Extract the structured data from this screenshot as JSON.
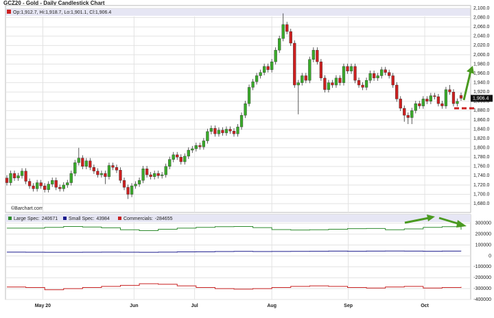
{
  "chart_data": {
    "type": "candlestick",
    "title": "GCZ20 - Gold - Daily Candlestick Chart",
    "ohlc_label": "Op:1,912.7, Hi:1,918.7, Lo:1,901.1, Cl:1,906.4",
    "source": "©Barchart.com",
    "last_price_label": "1,906.4",
    "up_color": "#3aaa2a",
    "down_color": "#cc2020",
    "months": [
      "May 20",
      "Jun",
      "Jul",
      "Aug",
      "Sep",
      "Oct"
    ],
    "open": [
      1735,
      1725,
      1745,
      1735,
      1740,
      1750,
      1728,
      1718,
      1712,
      1725,
      1718,
      1710,
      1722,
      1730,
      1715,
      1712,
      1720,
      1725,
      1745,
      1768,
      1778,
      1760,
      1772,
      1758,
      1750,
      1742,
      1745,
      1738,
      1762,
      1758,
      1752,
      1730,
      1715,
      1700,
      1718,
      1722,
      1730,
      1755,
      1742,
      1738,
      1745,
      1740,
      1742,
      1760,
      1775,
      1785,
      1780,
      1770,
      1782,
      1795,
      1798,
      1805,
      1802,
      1815,
      1835,
      1842,
      1830,
      1838,
      1832,
      1840,
      1836,
      1830,
      1845,
      1870,
      1895,
      1930,
      1942,
      1955,
      1962,
      1975,
      1968,
      1985,
      2010,
      2035,
      2065,
      2050,
      2025,
      1935,
      1940,
      1955,
      1945,
      1990,
      2010,
      1985,
      1950,
      1925,
      1940,
      1935,
      1950,
      1940,
      1975,
      1965,
      1975,
      1945,
      1935,
      1930,
      1945,
      1960,
      1950,
      1955,
      1968,
      1962,
      1955,
      1935,
      1905,
      1885,
      1870,
      1865,
      1880,
      1895,
      1890,
      1905,
      1900,
      1912,
      1910,
      1895,
      1890,
      1925,
      1920,
      1895,
      1912.7
    ],
    "high": [
      1741,
      1751,
      1751,
      1746,
      1756,
      1756,
      1734,
      1724,
      1731,
      1731,
      1724,
      1728,
      1736,
      1736,
      1721,
      1726,
      1731,
      1751,
      1774,
      1800,
      1784,
      1778,
      1778,
      1764,
      1756,
      1751,
      1751,
      1768,
      1768,
      1764,
      1758,
      1736,
      1721,
      1724,
      1728,
      1736,
      1761,
      1761,
      1748,
      1751,
      1751,
      1748,
      1766,
      1781,
      1791,
      1791,
      1786,
      1788,
      1801,
      1804,
      1811,
      1811,
      1821,
      1841,
      1848,
      1848,
      1844,
      1844,
      1846,
      1846,
      1842,
      1851,
      1876,
      1901,
      1936,
      1948,
      1961,
      1968,
      1981,
      1981,
      1991,
      2016,
      2041,
      2089,
      2071,
      2056,
      2031,
      1946,
      1961,
      1961,
      1996,
      2016,
      2016,
      1991,
      1956,
      1946,
      1946,
      1956,
      1956,
      1981,
      1981,
      1981,
      1981,
      1951,
      1941,
      1951,
      1966,
      1966,
      1961,
      1974,
      1974,
      1968,
      1961,
      1941,
      1911,
      1891,
      1876,
      1886,
      1901,
      1901,
      1911,
      1911,
      1918,
      1918,
      1916,
      1901,
      1931,
      1935,
      1926,
      1906,
      1918.7
    ],
    "low": [
      1719,
      1719,
      1729,
      1729,
      1734,
      1722,
      1712,
      1706,
      1706,
      1712,
      1704,
      1704,
      1716,
      1709,
      1706,
      1706,
      1714,
      1719,
      1739,
      1762,
      1754,
      1754,
      1752,
      1744,
      1736,
      1736,
      1722,
      1732,
      1752,
      1746,
      1724,
      1709,
      1690,
      1694,
      1712,
      1716,
      1724,
      1736,
      1732,
      1732,
      1734,
      1734,
      1736,
      1754,
      1769,
      1774,
      1764,
      1764,
      1776,
      1789,
      1792,
      1796,
      1796,
      1809,
      1829,
      1824,
      1824,
      1826,
      1826,
      1830,
      1824,
      1824,
      1839,
      1864,
      1889,
      1924,
      1936,
      1949,
      1956,
      1962,
      1962,
      1979,
      2004,
      2029,
      2044,
      2019,
      1929,
      1872,
      1934,
      1939,
      1939,
      1984,
      1979,
      1944,
      1919,
      1919,
      1929,
      1929,
      1934,
      1934,
      1959,
      1959,
      1939,
      1929,
      1924,
      1924,
      1939,
      1944,
      1944,
      1949,
      1956,
      1949,
      1929,
      1899,
      1879,
      1856,
      1851,
      1851,
      1874,
      1884,
      1884,
      1894,
      1894,
      1904,
      1889,
      1884,
      1884,
      1914,
      1889,
      1889,
      1901.1
    ],
    "close": [
      1725,
      1745,
      1735,
      1740,
      1750,
      1728,
      1718,
      1712,
      1725,
      1718,
      1710,
      1722,
      1730,
      1715,
      1712,
      1720,
      1725,
      1745,
      1768,
      1778,
      1760,
      1772,
      1758,
      1750,
      1742,
      1745,
      1738,
      1762,
      1758,
      1752,
      1730,
      1715,
      1700,
      1718,
      1722,
      1730,
      1755,
      1742,
      1738,
      1745,
      1740,
      1742,
      1760,
      1775,
      1785,
      1780,
      1770,
      1782,
      1795,
      1798,
      1805,
      1802,
      1815,
      1835,
      1842,
      1830,
      1838,
      1832,
      1840,
      1836,
      1830,
      1845,
      1870,
      1895,
      1930,
      1942,
      1955,
      1962,
      1975,
      1968,
      1985,
      2010,
      2035,
      2065,
      2050,
      2025,
      1935,
      1940,
      1955,
      1945,
      1990,
      2010,
      1985,
      1950,
      1925,
      1940,
      1935,
      1950,
      1940,
      1975,
      1965,
      1975,
      1945,
      1935,
      1930,
      1945,
      1960,
      1950,
      1955,
      1968,
      1962,
      1955,
      1935,
      1905,
      1885,
      1870,
      1865,
      1880,
      1895,
      1890,
      1905,
      1900,
      1912,
      1910,
      1895,
      1890,
      1925,
      1920,
      1895,
      1900,
      1906.4
    ],
    "ylim": [
      1661,
      2106
    ],
    "yticks": [
      {
        "value": 1680,
        "label": "1,680.0"
      },
      {
        "value": 1700,
        "label": "1,700.0"
      },
      {
        "value": 1720,
        "label": "1,720.0"
      },
      {
        "value": 1740,
        "label": "1,740.0"
      },
      {
        "value": 1760,
        "label": "1,760.0"
      },
      {
        "value": 1780,
        "label": "1,780.0"
      },
      {
        "value": 1800,
        "label": "1,800.0"
      },
      {
        "value": 1820,
        "label": "1,820.0"
      },
      {
        "value": 1840,
        "label": "1,840.0"
      },
      {
        "value": 1860,
        "label": "1,860.0"
      },
      {
        "value": 1880,
        "label": "1,880.0"
      },
      {
        "value": 1900,
        "label": "1,900.0"
      },
      {
        "value": 1920,
        "label": "1,920.0"
      },
      {
        "value": 1940,
        "label": "1,940.0"
      },
      {
        "value": 1960,
        "label": "1,960.0"
      },
      {
        "value": 1980,
        "label": "1,980.0"
      },
      {
        "value": 2000,
        "label": "2,000.0"
      },
      {
        "value": 2020,
        "label": "2,020.0"
      },
      {
        "value": 2040,
        "label": "2,040.0"
      },
      {
        "value": 2060,
        "label": "2,060.0"
      },
      {
        "value": 2080,
        "label": "2,080.0"
      },
      {
        "value": 2100,
        "label": "2,100.0"
      }
    ],
    "cot": {
      "type": "line",
      "series": [
        {
          "name": "Large Spec:",
          "color": "#2e8b2e",
          "values": [
            255000,
            255000,
            262000,
            270000,
            265000,
            258000,
            240000,
            232000,
            245000,
            255000,
            262000,
            268000,
            270000,
            260000,
            242000,
            238000,
            240000,
            245000,
            250000,
            252000,
            240000,
            248000,
            262000,
            268000,
            240671
          ]
        },
        {
          "name": "Small Spec:",
          "color": "#1a1a8c",
          "values": [
            35000,
            34000,
            33000,
            33000,
            34000,
            35000,
            34000,
            33000,
            35000,
            37000,
            38000,
            40000,
            42000,
            40000,
            41000,
            42000,
            43000,
            44000,
            43000,
            44000,
            45000,
            44000,
            43000,
            44000,
            43984
          ]
        },
        {
          "name": "Commercials:",
          "color": "#c82020",
          "values": [
            -285000,
            -290000,
            -310000,
            -300000,
            -290000,
            -280000,
            -270000,
            -255000,
            -260000,
            -275000,
            -290000,
            -300000,
            -305000,
            -300000,
            -290000,
            -280000,
            -275000,
            -280000,
            -290000,
            -295000,
            -285000,
            -280000,
            -295000,
            -290000,
            -284655
          ]
        }
      ],
      "ylim": [
        -400000,
        380000
      ],
      "yticks": [
        300000,
        200000,
        100000,
        0,
        -100000,
        -200000,
        -300000,
        -400000
      ]
    }
  }
}
